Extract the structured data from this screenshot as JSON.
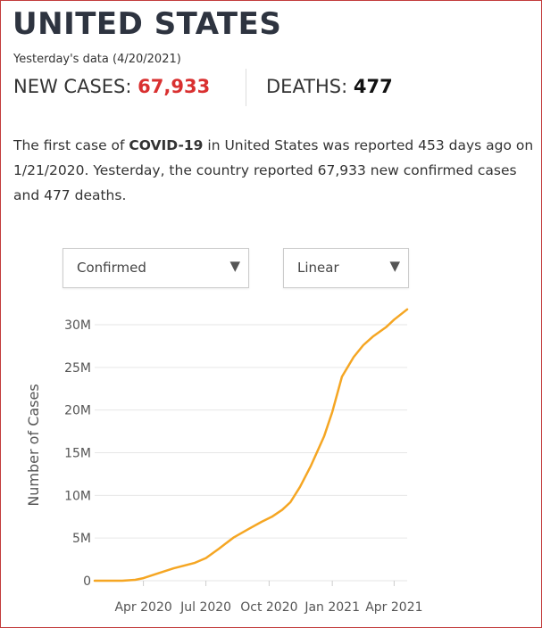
{
  "header": {
    "title": "UNITED STATES",
    "subtitle": "Yesterday's data (4/20/2021)"
  },
  "stats": {
    "new_cases_label": "NEW CASES:",
    "new_cases_value": "67,933",
    "deaths_label": "DEATHS:",
    "deaths_value": "477"
  },
  "description": {
    "p1": "The first case of ",
    "disease": "COVID-19",
    "p2": " in United States was reported 453 days ago on 1/21/2020. Yesterday, the country reported 67,933 new confirmed cases and 477 deaths."
  },
  "controls": {
    "metric_select": {
      "selected": "Confirmed"
    },
    "scale_select": {
      "selected": "Linear"
    }
  },
  "colors": {
    "accent_red": "#d93030",
    "line": "#f5a623",
    "frame_border": "#c23b3b",
    "grid": "#e6e6e6"
  },
  "icons": {
    "dropdown": "caret-down-icon"
  },
  "chart_data": {
    "type": "line",
    "title": "",
    "xlabel": "",
    "ylabel": "Number of Cases",
    "x_tick_labels": [
      "Apr 2020",
      "Jul 2020",
      "Oct 2020",
      "Jan 2021",
      "Apr 2021"
    ],
    "x_tick_dates": [
      "2020-04-01",
      "2020-07-01",
      "2020-10-01",
      "2021-01-01",
      "2021-04-01"
    ],
    "y_tick_labels": [
      "0",
      "5M",
      "10M",
      "15M",
      "20M",
      "25M",
      "30M"
    ],
    "y_tick_values": [
      0,
      5000000,
      10000000,
      15000000,
      20000000,
      25000000,
      30000000
    ],
    "xlim": [
      "2020-01-21",
      "2021-04-20"
    ],
    "ylim": [
      0,
      31500000
    ],
    "grid": "horizontal",
    "series": [
      {
        "x": [
          "2020-01-21",
          "2020-03-01",
          "2020-03-20",
          "2020-04-01",
          "2020-04-20",
          "2020-05-15",
          "2020-06-15",
          "2020-07-01",
          "2020-07-20",
          "2020-08-10",
          "2020-09-01",
          "2020-09-20",
          "2020-10-05",
          "2020-10-20",
          "2020-11-01",
          "2020-11-15",
          "2020-12-01",
          "2020-12-20",
          "2021-01-01",
          "2021-01-15",
          "2021-02-01",
          "2021-02-15",
          "2021-03-01",
          "2021-03-20",
          "2021-04-01",
          "2021-04-20"
        ],
        "y": [
          0,
          75,
          100000,
          300000,
          800000,
          1450000,
          2100000,
          2650000,
          3750000,
          5050000,
          6050000,
          6900000,
          7500000,
          8300000,
          9200000,
          11000000,
          13500000,
          16900000,
          19800000,
          23900000,
          26200000,
          27600000,
          28600000,
          29700000,
          30600000,
          31800000
        ]
      }
    ]
  }
}
